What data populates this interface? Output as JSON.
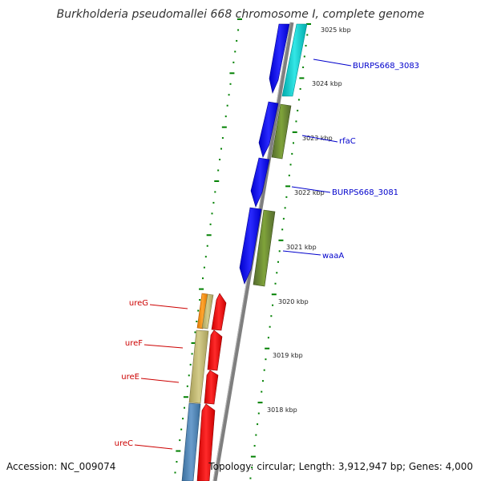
{
  "title": "Burkholderia pseudomallei 668 chromosome I, complete genome",
  "footer": {
    "accession": "Accession: NC_009074",
    "summary": "Topology: circular; Length: 3,912,947 bp; Genes: 4,000"
  },
  "ticks": [
    "3025 kbp",
    "3024 kbp",
    "3023 kbp",
    "3022 kbp",
    "3021 kbp",
    "3020 kbp",
    "3019 kbp",
    "3018 kbp"
  ],
  "genes_right": [
    {
      "label": "BURPS668_3083",
      "color": "#0000cc"
    },
    {
      "label": "rfaC",
      "color": "#0000cc"
    },
    {
      "label": "BURPS668_3081",
      "color": "#0000cc"
    },
    {
      "label": "waaA",
      "color": "#0000cc"
    }
  ],
  "genes_left": [
    {
      "label": "ureG",
      "color": "#cc0000"
    },
    {
      "label": "ureF",
      "color": "#cc0000"
    },
    {
      "label": "ureE",
      "color": "#cc0000"
    },
    {
      "label": "ureC",
      "color": "#cc0000"
    }
  ],
  "colors": {
    "backbone": "#7f7f7f",
    "forward_cds": "#0000ff",
    "reverse_cds": "#ff0000",
    "cyan_feature": "#00cccc",
    "olive_feature": "#6b8e23",
    "khaki_feature": "#bdb76b",
    "orange_feature": "#ff8c00",
    "steel_feature": "#4682b4",
    "ruler": "#008000"
  }
}
